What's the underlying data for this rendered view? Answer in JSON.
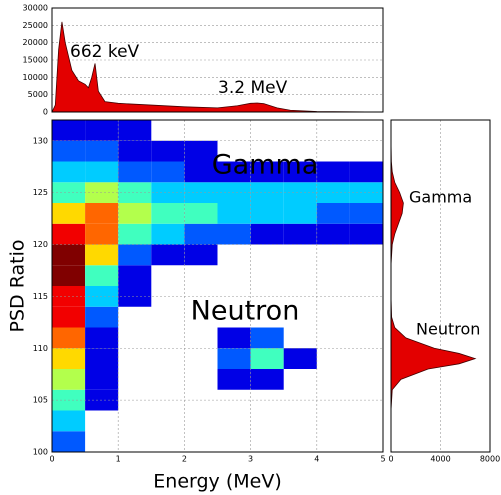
{
  "chart_data": [
    {
      "type": "area",
      "orientation": "vertical",
      "color": "#e30000",
      "annotations": [
        "662 keV",
        "3.2 MeV"
      ],
      "x": [
        0,
        0.05,
        0.1,
        0.15,
        0.2,
        0.3,
        0.4,
        0.5,
        0.55,
        0.6,
        0.65,
        0.7,
        0.8,
        1.0,
        1.5,
        2.0,
        2.5,
        2.8,
        3.0,
        3.1,
        3.2,
        3.4,
        3.6,
        4.0,
        4.5,
        5.0
      ],
      "values": [
        0,
        2000,
        18000,
        26000,
        20000,
        12000,
        9000,
        8000,
        7000,
        10000,
        14000,
        6000,
        3000,
        2500,
        2000,
        1500,
        1200,
        1800,
        2500,
        2600,
        2400,
        1200,
        500,
        150,
        50,
        0
      ],
      "xlim": [
        0,
        5
      ],
      "ylim": [
        0,
        30000
      ],
      "yticks": [
        0,
        5000,
        10000,
        15000,
        20000,
        25000,
        30000
      ],
      "grid": true
    },
    {
      "type": "heatmap",
      "x_label": "Energy (MeV)",
      "y_label": "PSD Ratio",
      "annotations": [
        "Gamma",
        "Neutron"
      ],
      "xbins": [
        0,
        0.5,
        1,
        1.5,
        2,
        2.5,
        3,
        3.5,
        4,
        4.5,
        5
      ],
      "ybins": [
        100,
        102,
        104,
        106,
        108,
        110,
        112,
        114,
        116,
        118,
        120,
        122,
        124,
        126,
        128,
        130,
        132
      ],
      "z": [
        [
          2,
          0,
          0,
          0,
          0,
          0,
          0,
          0,
          0,
          0
        ],
        [
          3,
          0,
          0,
          0,
          0,
          0,
          0,
          0,
          0,
          0
        ],
        [
          4,
          1,
          0,
          0,
          0,
          0,
          0,
          0,
          0,
          0
        ],
        [
          5,
          1,
          0,
          0,
          0,
          1,
          1,
          0,
          0,
          0
        ],
        [
          6,
          1,
          0,
          0,
          0,
          2,
          4,
          1,
          0,
          0
        ],
        [
          7,
          1,
          0,
          0,
          0,
          1,
          2,
          0,
          0,
          0
        ],
        [
          8,
          2,
          0,
          0,
          0,
          0,
          0,
          0,
          0,
          0
        ],
        [
          8,
          3,
          1,
          0,
          0,
          0,
          0,
          0,
          0,
          0
        ],
        [
          9,
          4,
          1,
          0,
          0,
          0,
          0,
          0,
          0,
          0
        ],
        [
          9,
          6,
          2,
          1,
          1,
          0,
          0,
          0,
          0,
          0
        ],
        [
          8,
          7,
          4,
          3,
          2,
          2,
          1,
          1,
          1,
          1
        ],
        [
          6,
          7,
          5,
          4,
          4,
          3,
          3,
          3,
          2,
          2
        ],
        [
          4,
          5,
          4,
          3,
          3,
          3,
          3,
          3,
          3,
          3
        ],
        [
          3,
          3,
          2,
          2,
          1,
          1,
          1,
          1,
          1,
          1
        ],
        [
          2,
          2,
          1,
          1,
          1,
          0,
          0,
          0,
          0,
          0
        ],
        [
          1,
          1,
          1,
          0,
          0,
          0,
          0,
          0,
          0,
          0
        ]
      ],
      "colormap": "jet",
      "xlim": [
        0,
        5
      ],
      "xticks": [
        0,
        1,
        2,
        3,
        4,
        5
      ],
      "ylim": [
        100,
        132
      ],
      "yticks": [
        100,
        105,
        110,
        115,
        120,
        125,
        130
      ],
      "grid": true
    },
    {
      "type": "area",
      "orientation": "horizontal",
      "color": "#e30000",
      "annotations": [
        "Gamma",
        "Neutron"
      ],
      "x": [
        100,
        104,
        106,
        107,
        108,
        108.5,
        109,
        109.5,
        110,
        111,
        112,
        113,
        115,
        118,
        120,
        121,
        122,
        123,
        124,
        125,
        126,
        127,
        128,
        130,
        132
      ],
      "values": [
        0,
        0,
        100,
        800,
        3000,
        5500,
        6800,
        5500,
        3500,
        1200,
        300,
        50,
        0,
        0,
        100,
        300,
        600,
        900,
        1000,
        700,
        300,
        100,
        30,
        0,
        0
      ],
      "xlim": [
        0,
        8000
      ],
      "xticks": [
        0,
        4000,
        8000
      ],
      "ylim": [
        100,
        132
      ],
      "grid": true
    }
  ]
}
